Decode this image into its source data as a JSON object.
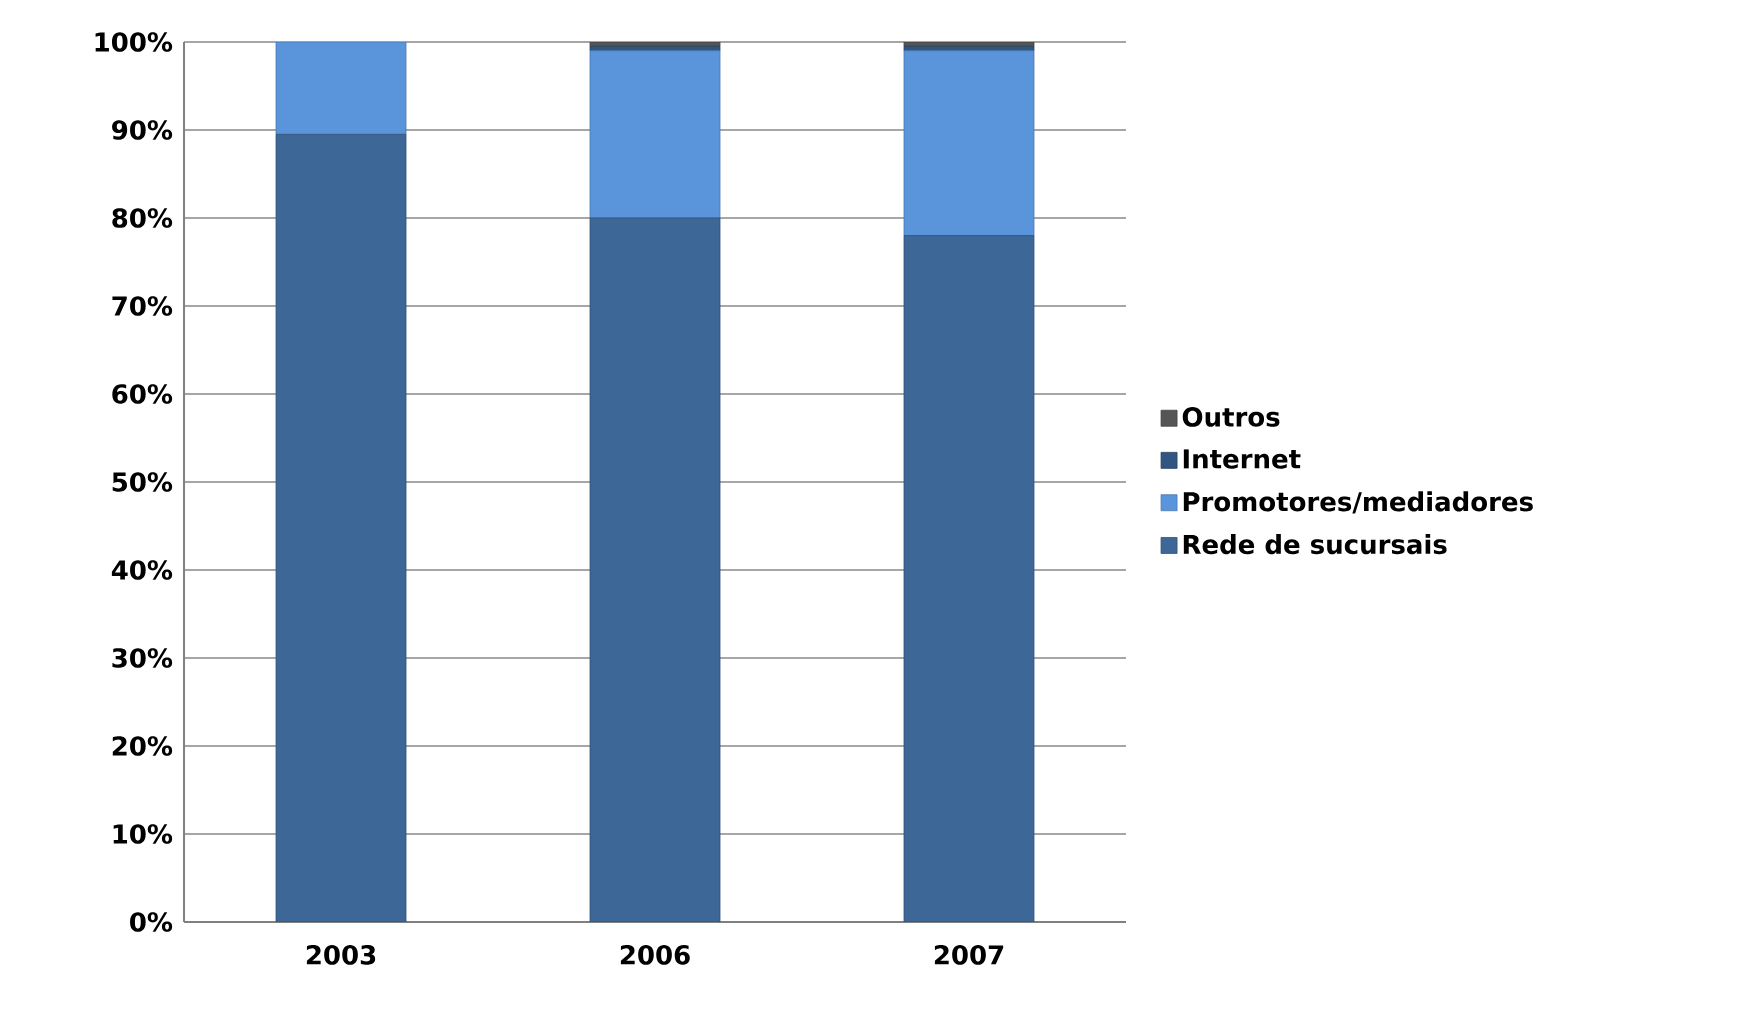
{
  "chart_data": {
    "type": "bar",
    "stacked": true,
    "categories": [
      "2003",
      "2006",
      "2007"
    ],
    "series": [
      {
        "name": "Rede de sucursais",
        "color": "#3d6797",
        "values": [
          89.5,
          80,
          78
        ]
      },
      {
        "name": "Promotores/mediadores",
        "color": "#5a95dc",
        "values": [
          10.5,
          19,
          21
        ]
      },
      {
        "name": "Internet",
        "color": "#2f5580",
        "values": [
          0,
          0.5,
          0.5
        ]
      },
      {
        "name": "Outros",
        "color": "#555555",
        "values": [
          0,
          0.5,
          0.5
        ]
      }
    ],
    "ylim": [
      0,
      100
    ],
    "yticks": [
      {
        "value": 0,
        "label": "0%"
      },
      {
        "value": 10,
        "label": "10%"
      },
      {
        "value": 20,
        "label": "20%"
      },
      {
        "value": 30,
        "label": "30%"
      },
      {
        "value": 40,
        "label": "40%"
      },
      {
        "value": 50,
        "label": "50%"
      },
      {
        "value": 60,
        "label": "60%"
      },
      {
        "value": 70,
        "label": "70%"
      },
      {
        "value": 80,
        "label": "80%"
      },
      {
        "value": 90,
        "label": "90%"
      },
      {
        "value": 100,
        "label": "100%"
      }
    ],
    "grid": "y",
    "legend": "right"
  }
}
